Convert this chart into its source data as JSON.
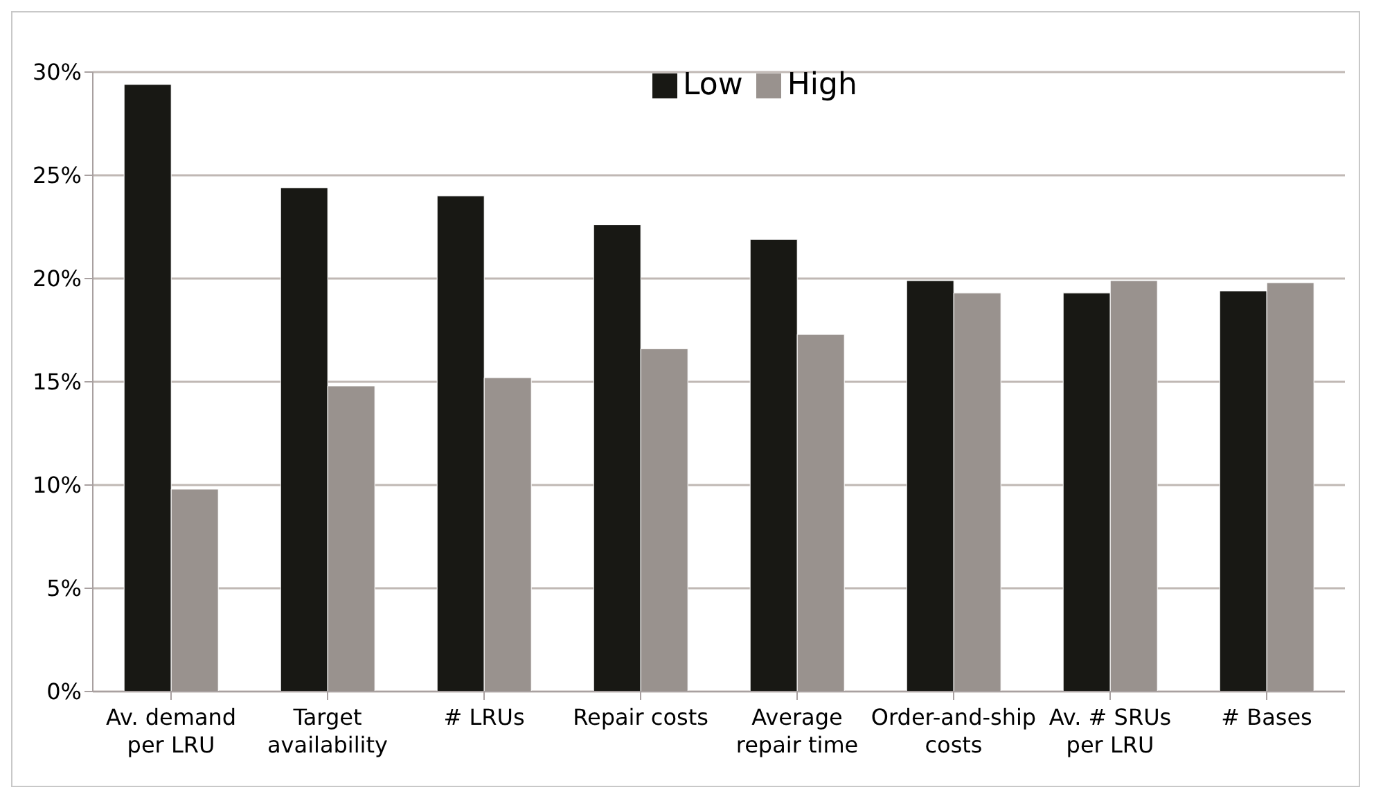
{
  "chart_data": {
    "type": "bar",
    "categories": [
      "Av. demand per LRU",
      "Target availability",
      "#  LRUs",
      "Repair costs",
      "Average repair time",
      "Order-and-ship costs",
      "Av. #  SRUs per LRU",
      "# Bases"
    ],
    "series": [
      {
        "name": "Low",
        "color": "#181814",
        "values": [
          29.4,
          24.4,
          24.0,
          22.6,
          21.9,
          19.9,
          19.3,
          19.4
        ]
      },
      {
        "name": "High",
        "color": "#99928e",
        "values": [
          9.8,
          14.8,
          15.2,
          16.6,
          17.3,
          19.3,
          19.9,
          19.8
        ]
      }
    ],
    "ylim": [
      0,
      30
    ],
    "yticks": [
      {
        "value": 0,
        "label": "0%"
      },
      {
        "value": 5,
        "label": "5%"
      },
      {
        "value": 10,
        "label": "10%"
      },
      {
        "value": 15,
        "label": "15%"
      },
      {
        "value": 20,
        "label": "20%"
      },
      {
        "value": 25,
        "label": "25%"
      },
      {
        "value": 30,
        "label": "30%"
      }
    ],
    "grid": "y",
    "legend": "top"
  }
}
